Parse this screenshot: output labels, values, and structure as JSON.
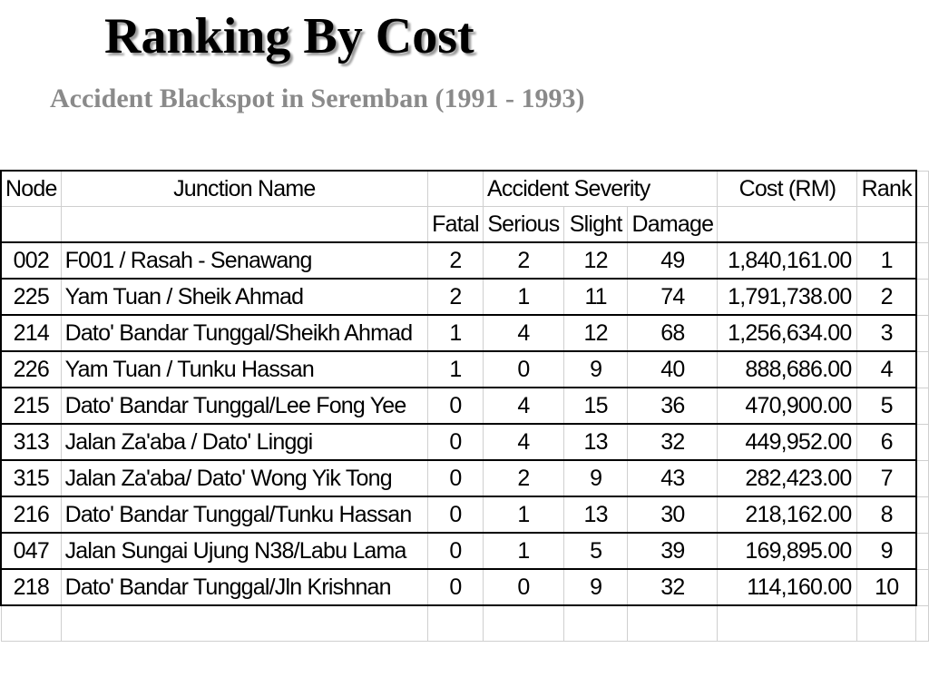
{
  "title": "Ranking By Cost",
  "subtitle": "Accident Blackspot in Seremban (1991 - 1993)",
  "table": {
    "headers": {
      "node": "Node",
      "junction": "Junction Name",
      "severity": "Accident Severity",
      "cost": "Cost (RM)",
      "rank": "Rank",
      "fatal": "Fatal",
      "serious": "Serious",
      "slight": "Slight",
      "damage": "Damage"
    },
    "rows": [
      {
        "node": "002",
        "junction": "F001 / Rasah - Senawang",
        "fatal": "2",
        "serious": "2",
        "slight": "12",
        "damage": "49",
        "cost": "1,840,161.00",
        "rank": "1"
      },
      {
        "node": "225",
        "junction": "Yam Tuan / Sheik Ahmad",
        "fatal": "2",
        "serious": "1",
        "slight": "11",
        "damage": "74",
        "cost": "1,791,738.00",
        "rank": "2"
      },
      {
        "node": "214",
        "junction": "Dato' Bandar Tunggal/Sheikh Ahmad",
        "fatal": "1",
        "serious": "4",
        "slight": "12",
        "damage": "68",
        "cost": "1,256,634.00",
        "rank": "3"
      },
      {
        "node": "226",
        "junction": "Yam Tuan / Tunku Hassan",
        "fatal": "1",
        "serious": "0",
        "slight": "9",
        "damage": "40",
        "cost": "888,686.00",
        "rank": "4"
      },
      {
        "node": "215",
        "junction": "Dato' Bandar Tunggal/Lee Fong Yee",
        "fatal": "0",
        "serious": "4",
        "slight": "15",
        "damage": "36",
        "cost": "470,900.00",
        "rank": "5"
      },
      {
        "node": "313",
        "junction": "Jalan Za'aba / Dato' Linggi",
        "fatal": "0",
        "serious": "4",
        "slight": "13",
        "damage": "32",
        "cost": "449,952.00",
        "rank": "6"
      },
      {
        "node": "315",
        "junction": "Jalan Za'aba/ Dato' Wong Yik Tong",
        "fatal": "0",
        "serious": "2",
        "slight": "9",
        "damage": "43",
        "cost": "282,423.00",
        "rank": "7"
      },
      {
        "node": "216",
        "junction": "Dato' Bandar Tunggal/Tunku Hassan",
        "fatal": "0",
        "serious": "1",
        "slight": "13",
        "damage": "30",
        "cost": "218,162.00",
        "rank": "8"
      },
      {
        "node": "047",
        "junction": "Jalan Sungai Ujung N38/Labu Lama",
        "fatal": "0",
        "serious": "1",
        "slight": "5",
        "damage": "39",
        "cost": "169,895.00",
        "rank": "9"
      },
      {
        "node": "218",
        "junction": "Dato' Bandar Tunggal/Jln Krishnan",
        "fatal": "0",
        "serious": "0",
        "slight": "9",
        "damage": "32",
        "cost": "114,160.00",
        "rank": "10"
      }
    ]
  }
}
